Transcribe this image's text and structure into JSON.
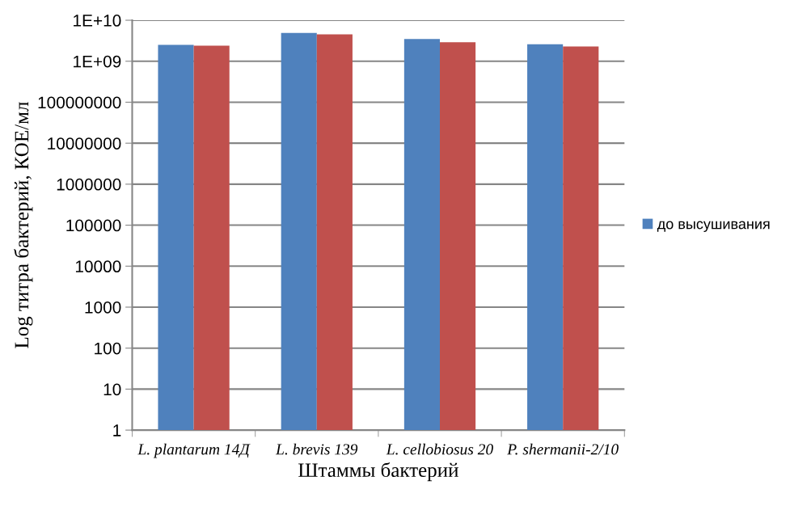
{
  "chart_data": {
    "type": "bar",
    "xlabel": "Штаммы бактерий",
    "ylabel": "Log титра бактерий, КОЕ/мл",
    "categories": [
      "L. plantarum 14Д",
      "L. brevis 139",
      "L. cellobiosus 20",
      "P. shermanii-2/10"
    ],
    "series": [
      {
        "name": "до высушивания",
        "color": "#4f81bd",
        "values": [
          2500000000,
          4900000000,
          3500000000,
          2600000000
        ]
      },
      {
        "color": "#c0504d",
        "values": [
          2400000000,
          4500000000,
          2900000000,
          2300000000
        ]
      }
    ],
    "log": true,
    "ylim": [
      1,
      10000000000
    ],
    "yticks": [
      1,
      10,
      100,
      1000,
      10000,
      100000,
      1000000,
      10000000,
      100000000,
      {
        "value": 1000000000,
        "label": "1E+09"
      },
      {
        "value": 10000000000,
        "label": "1E+10"
      }
    ],
    "grid": "y",
    "legend": "right"
  }
}
